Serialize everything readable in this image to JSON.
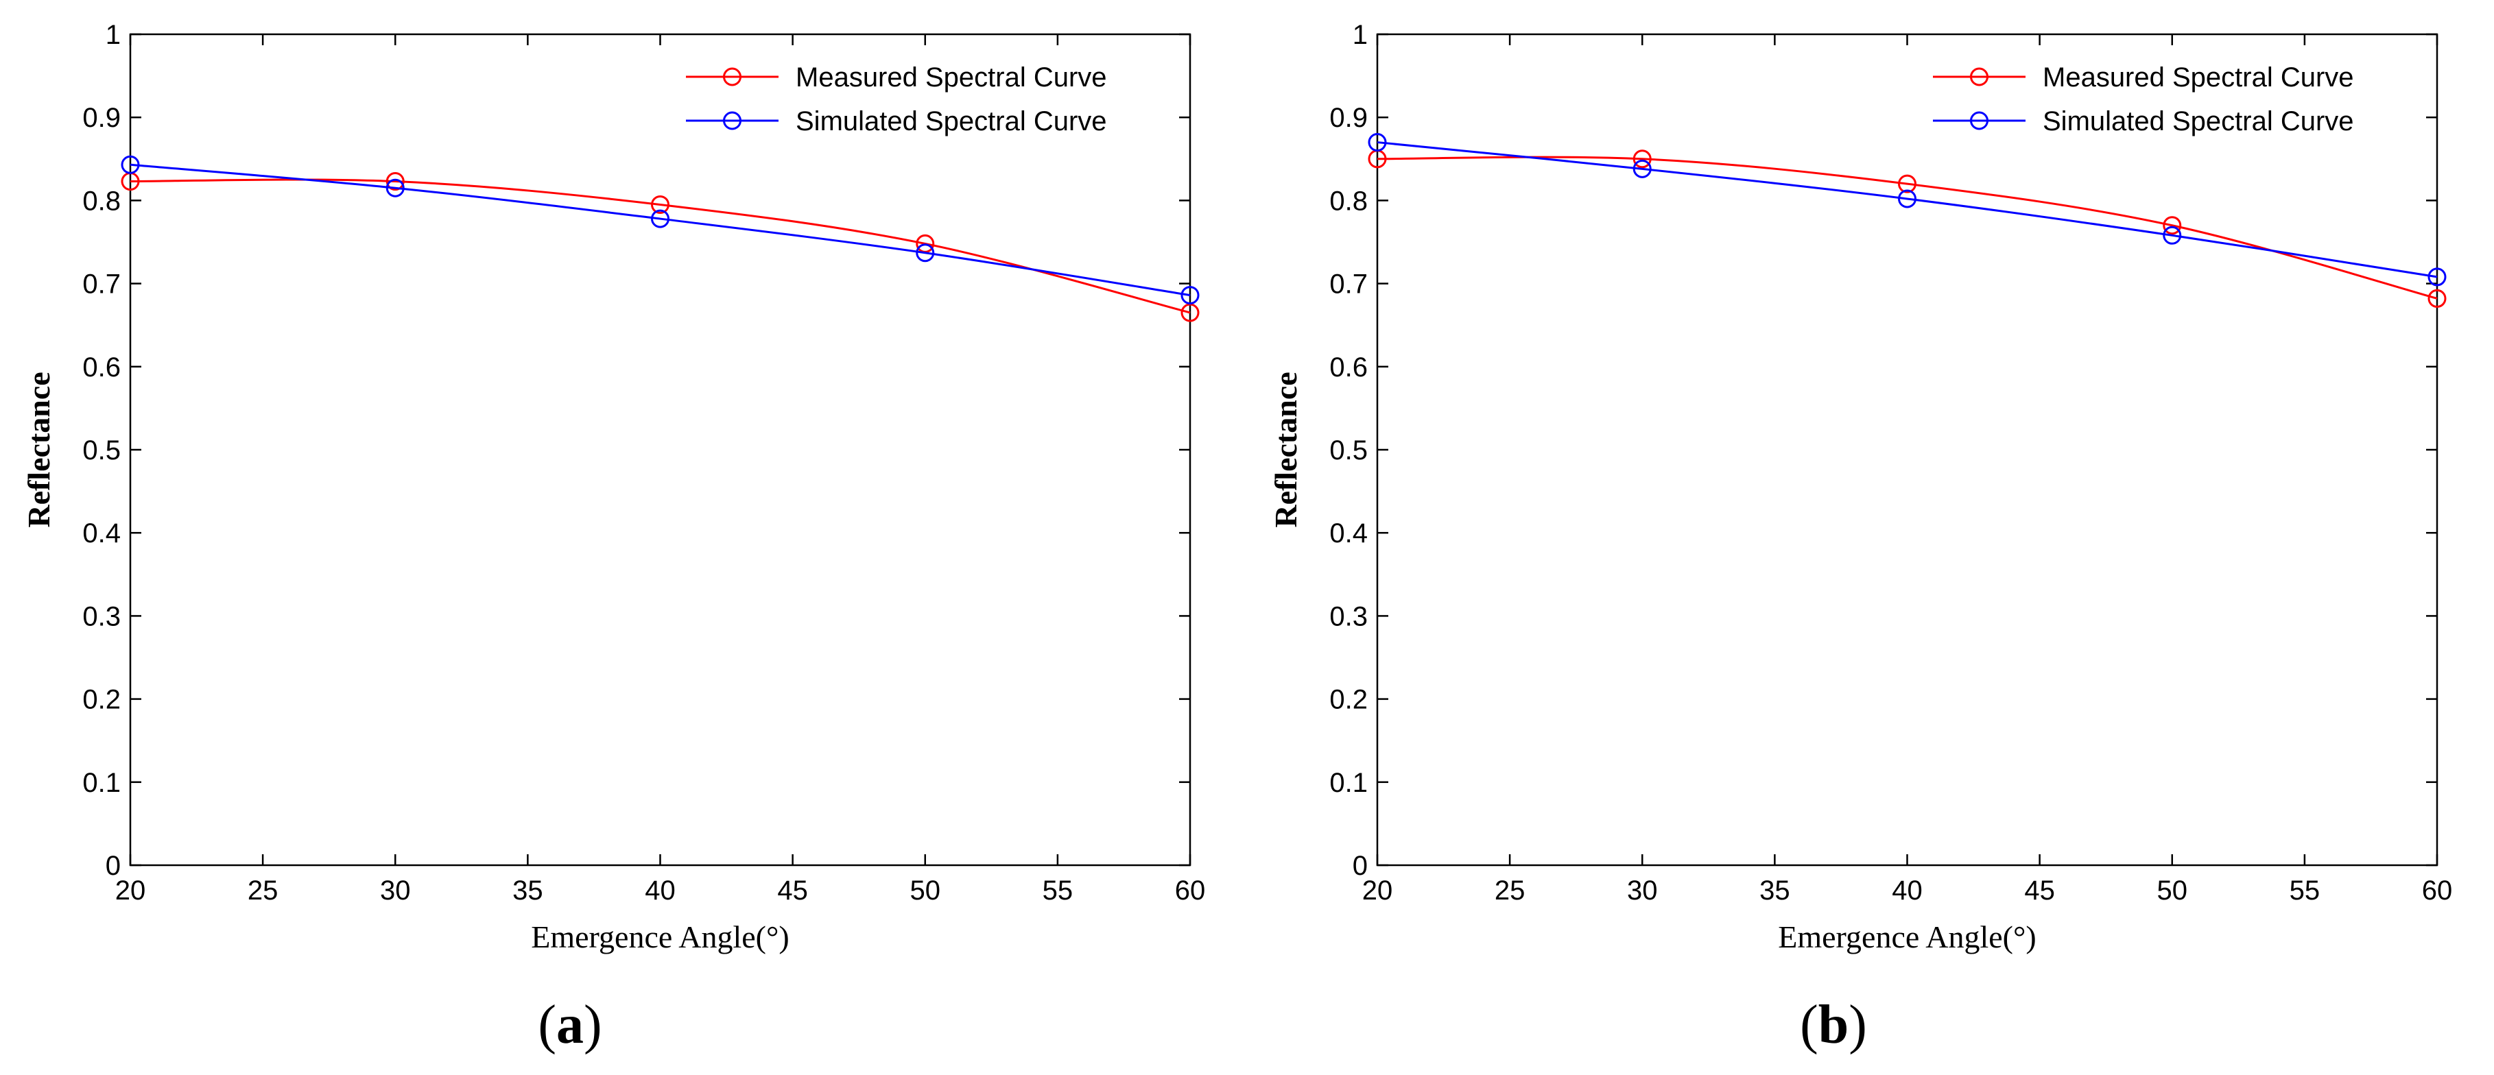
{
  "figure": {
    "panels": [
      {
        "label_open": "(",
        "label_letter": "a",
        "label_close": ")"
      },
      {
        "label_open": "(",
        "label_letter": "b",
        "label_close": ")"
      }
    ]
  },
  "chart_data": [
    {
      "type": "line",
      "title": "",
      "xlabel": "Emergence Angle(°)",
      "ylabel": "Reflectance",
      "xlim": [
        20,
        60
      ],
      "ylim": [
        0,
        1
      ],
      "xticks": [
        20,
        25,
        30,
        35,
        40,
        45,
        50,
        55,
        60
      ],
      "yticks": [
        0,
        0.1,
        0.2,
        0.3,
        0.4,
        0.5,
        0.6,
        0.7,
        0.8,
        0.9,
        1
      ],
      "ytick_labels": [
        "0",
        "0.1",
        "0.2",
        "0.3",
        "0.4",
        "0.5",
        "0.6",
        "0.7",
        "0.8",
        "0.9",
        "1"
      ],
      "legend_position": "top-right",
      "grid": false,
      "series": [
        {
          "name": "Measured Spectral Curve",
          "color": "#ff0000",
          "marker": "circle",
          "x": [
            20,
            30,
            40,
            50,
            60
          ],
          "values": [
            0.823,
            0.823,
            0.795,
            0.748,
            0.665
          ]
        },
        {
          "name": "Simulated Spectral Curve",
          "color": "#0000ff",
          "marker": "circle",
          "x": [
            20,
            30,
            40,
            50,
            60
          ],
          "values": [
            0.843,
            0.815,
            0.778,
            0.737,
            0.686
          ]
        }
      ]
    },
    {
      "type": "line",
      "title": "",
      "xlabel": "Emergence Angle(°)",
      "ylabel": "Reflectance",
      "xlim": [
        20,
        60
      ],
      "ylim": [
        0,
        1
      ],
      "xticks": [
        20,
        25,
        30,
        35,
        40,
        45,
        50,
        55,
        60
      ],
      "yticks": [
        0,
        0.1,
        0.2,
        0.3,
        0.4,
        0.5,
        0.6,
        0.7,
        0.8,
        0.9,
        1
      ],
      "ytick_labels": [
        "0",
        "0.1",
        "0.2",
        "0.3",
        "0.4",
        "0.5",
        "0.6",
        "0.7",
        "0.8",
        "0.9",
        "1"
      ],
      "legend_position": "top-right",
      "grid": false,
      "series": [
        {
          "name": "Measured Spectral Curve",
          "color": "#ff0000",
          "marker": "circle",
          "x": [
            20,
            30,
            40,
            50,
            60
          ],
          "values": [
            0.85,
            0.85,
            0.82,
            0.77,
            0.682
          ]
        },
        {
          "name": "Simulated Spectral Curve",
          "color": "#0000ff",
          "marker": "circle",
          "x": [
            20,
            30,
            40,
            50,
            60
          ],
          "values": [
            0.87,
            0.838,
            0.802,
            0.758,
            0.708
          ]
        }
      ]
    }
  ]
}
